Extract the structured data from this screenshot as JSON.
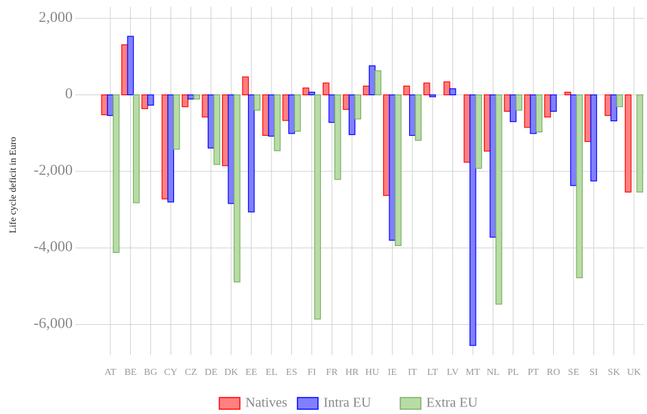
{
  "chart_data": {
    "type": "bar",
    "y_label": "Life cycle deficit in Euro",
    "categories": [
      "AT",
      "BE",
      "BG",
      "CY",
      "CZ",
      "DE",
      "DK",
      "EE",
      "EL",
      "ES",
      "FI",
      "FR",
      "HR",
      "HU",
      "IE",
      "IT",
      "LT",
      "LV",
      "MT",
      "NL",
      "PL",
      "PT",
      "RO",
      "SE",
      "SI",
      "SK",
      "UK"
    ],
    "series": [
      {
        "name": "Natives",
        "color": "#ff0000",
        "fill": "#ff8080",
        "values": [
          -520,
          1310,
          -360,
          -2720,
          -310,
          -580,
          -1850,
          470,
          -1060,
          -670,
          180,
          310,
          -380,
          230,
          -2630,
          230,
          310,
          340,
          -1760,
          -1470,
          -430,
          -850,
          -580,
          70,
          -1220,
          -540,
          -2540
        ]
      },
      {
        "name": "Intra EU",
        "color": "#0000ff",
        "fill": "#8080ff",
        "values": [
          -540,
          1530,
          -270,
          -2800,
          -110,
          -1390,
          -2840,
          -3060,
          -1080,
          -1010,
          70,
          -720,
          -1040,
          760,
          -3800,
          -1060,
          -50,
          160,
          -6550,
          -3720,
          -700,
          -1010,
          -430,
          -2370,
          -2250,
          -680,
          null
        ]
      },
      {
        "name": "Extra EU",
        "color": "#78b060",
        "fill": "#b8dca6",
        "values": [
          -4120,
          -2820,
          null,
          -1420,
          -110,
          -1820,
          -4890,
          -400,
          -1460,
          -950,
          -5860,
          -2210,
          -630,
          630,
          -3940,
          -1190,
          null,
          null,
          -1920,
          -5470,
          -400,
          -970,
          null,
          -4780,
          null,
          -310,
          -2540
        ]
      }
    ],
    "ylim": [
      -6800,
      2300
    ],
    "yticks": [
      {
        "value": -6000,
        "label": "-6,000"
      },
      {
        "value": -4000,
        "label": "-4,000"
      },
      {
        "value": -2000,
        "label": "-2,000"
      },
      0,
      {
        "value": 2000,
        "label": "2,000"
      }
    ],
    "grid": true,
    "legend": "bottom"
  }
}
